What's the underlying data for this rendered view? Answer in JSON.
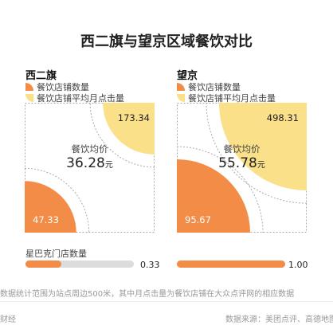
{
  "title": "西二旗与望京区域餐饮对比",
  "colors": {
    "restaurant_count": "#f28c47",
    "monthly_clicks": "#fbe08a",
    "bar": "#f28c47",
    "bar_track": "#dcdcdc",
    "dashed": "#aaaaaa"
  },
  "legend": {
    "count_label": "餐饮店铺数量",
    "clicks_label": "餐饮店铺平均月点击量"
  },
  "avg_price_label": "餐饮均价",
  "currency_unit": "元",
  "starbucks_label": "星巴克门店数量",
  "footnote": "数据统计范围为站点周边500米，其中月点击量为餐饮店铺在大众点评网的相应数据",
  "brand": "财经",
  "source": "数据来源：美团点评、高德地图",
  "chart_data": [
    {
      "type": "area",
      "region": "西二旗",
      "restaurant_count": 47.33,
      "avg_monthly_clicks": 173.34,
      "avg_price": "36.28",
      "starbucks_count": 0.33
    },
    {
      "type": "area",
      "region": "望京",
      "restaurant_count": 95.67,
      "avg_monthly_clicks": 498.31,
      "avg_price": "55.78",
      "starbucks_count": 1.0
    }
  ],
  "values_text": {
    "left_count": "47.33",
    "left_clicks": "173.34",
    "left_price": "36.28",
    "left_starbucks": "0.33",
    "right_count": "95.67",
    "right_clicks": "498.31",
    "right_price": "55.78",
    "right_starbucks": "1.00"
  }
}
